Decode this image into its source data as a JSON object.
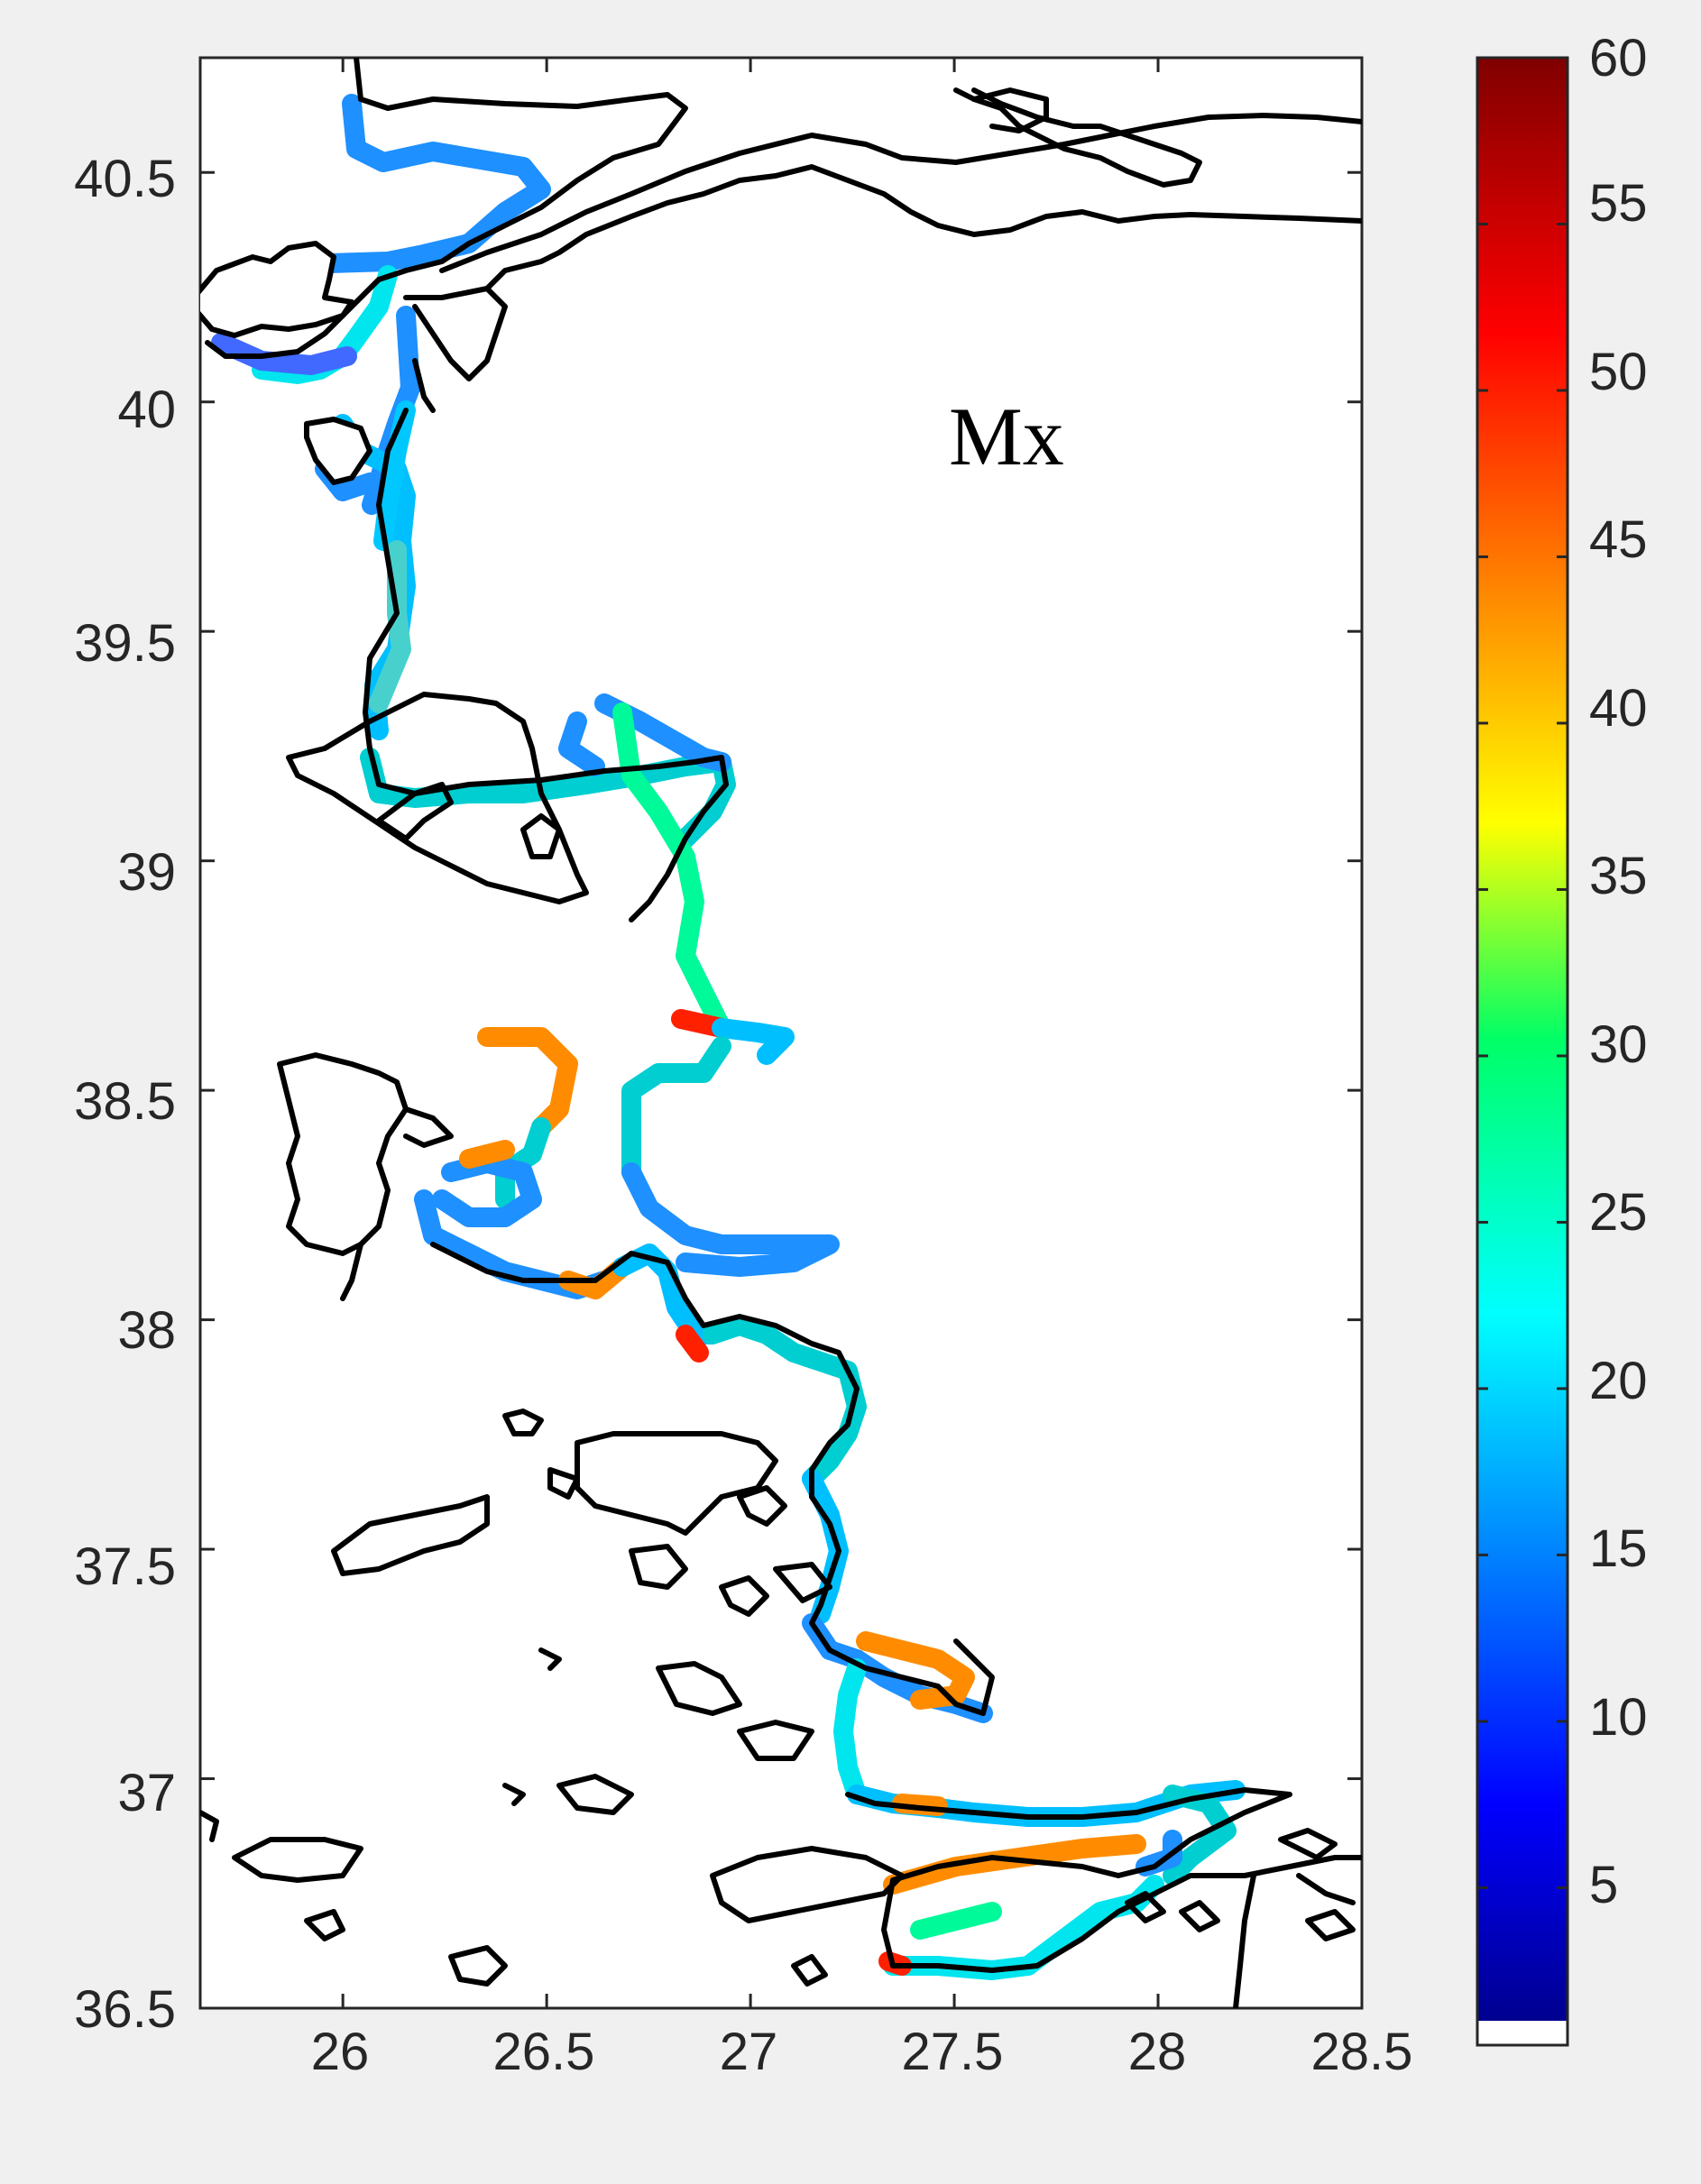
{
  "annotation": "Mx",
  "map": {
    "xlim": [
      25.65,
      28.5
    ],
    "ylim": [
      36.5,
      40.75
    ],
    "x_ticks": [
      26,
      26.5,
      27,
      27.5,
      28,
      28.5
    ],
    "y_ticks": [
      36.5,
      37,
      37.5,
      38,
      38.5,
      39,
      39.5,
      40,
      40.5
    ],
    "x_tick_labels": [
      "26",
      "26.5",
      "27",
      "27.5",
      "28",
      "28.5"
    ],
    "y_tick_labels": [
      "36.5",
      "37",
      "37.5",
      "38",
      "38.5",
      "39",
      "39.5",
      "40",
      "40.5"
    ]
  },
  "colorbar": {
    "colormap": "jet",
    "range": [
      1,
      60
    ],
    "ticks": [
      5,
      10,
      15,
      20,
      25,
      30,
      35,
      40,
      45,
      50,
      55,
      60
    ],
    "tick_labels": [
      "5",
      "10",
      "15",
      "20",
      "25",
      "30",
      "35",
      "40",
      "45",
      "50",
      "55",
      "60"
    ],
    "below_range_color": "#ffffff"
  },
  "colors": {
    "background": "#f0f0f0",
    "axes": "#ffffff",
    "coastline": "#000000",
    "tick_text": "#262626"
  }
}
